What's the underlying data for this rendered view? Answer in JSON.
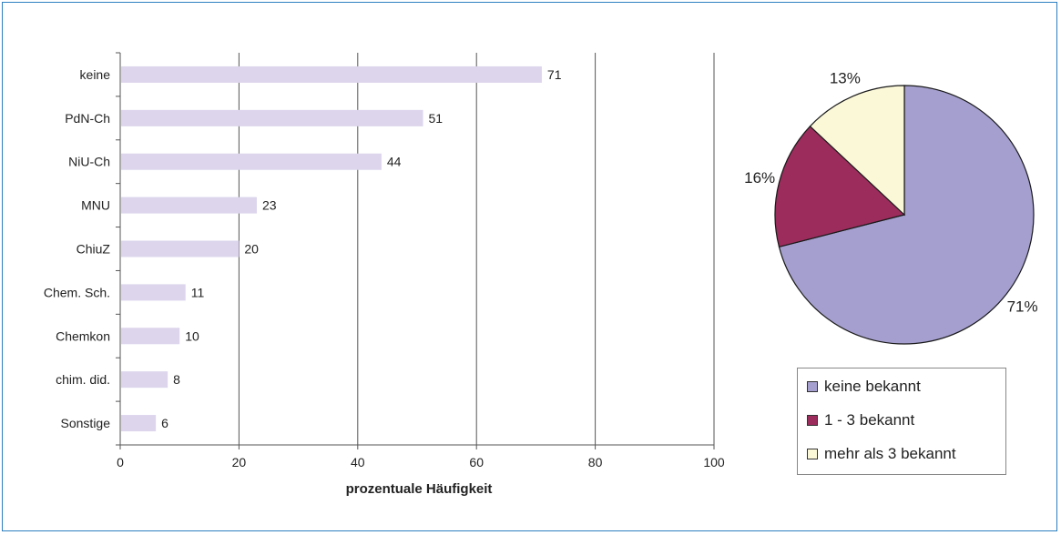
{
  "chart_data": [
    {
      "type": "bar",
      "orientation": "horizontal",
      "categories": [
        "keine",
        "PdN-Ch",
        "NiU-Ch",
        "MNU",
        "ChiuZ",
        "Chem. Sch.",
        "Chemkon",
        "chim. did.",
        "Sonstige"
      ],
      "values": [
        71,
        51,
        44,
        23,
        20,
        11,
        10,
        8,
        6
      ],
      "data_labels": [
        "71",
        "51",
        "44",
        "23",
        "20",
        "11",
        "10",
        "8",
        "6"
      ],
      "xlabel": "prozentuale Häufigkeit",
      "ylabel": "",
      "xlim": [
        0,
        100
      ],
      "x_ticks": [
        "0",
        "20",
        "40",
        "60",
        "80",
        "100"
      ],
      "grid": "vertical",
      "bar_color": "#dcd5ec"
    },
    {
      "type": "pie",
      "slices": [
        {
          "label": "keine bekannt",
          "value": 71,
          "data_label": "71%",
          "color": "#a49fce"
        },
        {
          "label": "1 - 3 bekannt",
          "value": 16,
          "data_label": "16%",
          "color": "#9b2c5c"
        },
        {
          "label": "mehr als 3 bekannt",
          "value": 13,
          "data_label": "13%",
          "color": "#fbf8d8"
        }
      ],
      "legend_position": "bottom"
    }
  ]
}
